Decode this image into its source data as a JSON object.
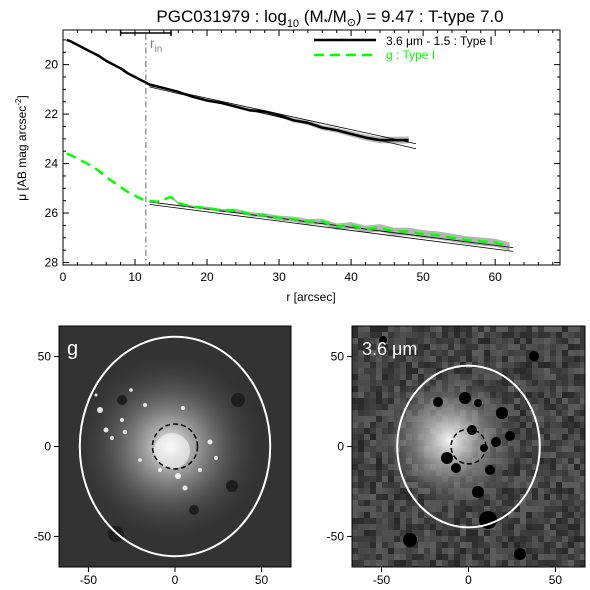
{
  "chart_data": [
    {
      "type": "line",
      "title": {
        "prefix": "PGC031979 : log",
        "sub10": "10",
        "mid": " (M",
        "star": "*",
        "slash": "/M",
        "sun": "⊙",
        "suffix": ") = 9.47 : T-type 7.0"
      },
      "xlabel": "r [arcsec]",
      "ylabel": "μ [AB mag arcsec",
      "ylabel_exp": "-2",
      "ylabel_close": "]",
      "xlim": [
        0,
        69
      ],
      "ylim": [
        28.1,
        18.6
      ],
      "y_inverted": true,
      "xticks": [
        0,
        10,
        20,
        30,
        40,
        50,
        60
      ],
      "yticks": [
        20,
        22,
        24,
        26,
        28
      ],
      "r_in_label": "r",
      "r_in_sub": "in",
      "r_in_value": 11.5,
      "r_in_error": [
        8,
        15
      ],
      "legend_position": "top-right",
      "legend": [
        {
          "label": "3.6 μm - 1.5 : Type I",
          "color": "#000000",
          "style": "solid"
        },
        {
          "label": "g : Type I",
          "color": "#00ff00",
          "style": "dashed"
        }
      ],
      "series": [
        {
          "name": "3.6 μm - 1.5 : Type I",
          "color": "#000000",
          "x": [
            0.5,
            1,
            2,
            3,
            4,
            5,
            6,
            7,
            8,
            9,
            10,
            11,
            12,
            14,
            16,
            18,
            20,
            22,
            24,
            26,
            28,
            30,
            32,
            34,
            36,
            38,
            40,
            42,
            44,
            46,
            48
          ],
          "y": [
            19.0,
            19.05,
            19.2,
            19.35,
            19.5,
            19.65,
            19.85,
            20.0,
            20.15,
            20.35,
            20.5,
            20.65,
            20.8,
            20.95,
            21.1,
            21.3,
            21.45,
            21.55,
            21.7,
            21.85,
            21.9,
            22.05,
            22.25,
            22.35,
            22.55,
            22.65,
            22.8,
            22.95,
            23.05,
            23.05,
            23.05
          ]
        },
        {
          "name": "g : Type I",
          "color": "#00ff00",
          "x": [
            0.5,
            1,
            2,
            3,
            4,
            5,
            6,
            7,
            8,
            9,
            10,
            11,
            12,
            13,
            14,
            15,
            16,
            18,
            20,
            22,
            24,
            26,
            28,
            30,
            32,
            34,
            36,
            38,
            40,
            42,
            44,
            46,
            48,
            50,
            52,
            54,
            56,
            58,
            60,
            62
          ],
          "y": [
            23.6,
            23.65,
            23.8,
            23.95,
            24.1,
            24.3,
            24.55,
            24.75,
            24.95,
            25.15,
            25.3,
            25.45,
            25.5,
            25.55,
            25.45,
            25.35,
            25.6,
            25.75,
            25.8,
            25.9,
            25.9,
            26.05,
            26.1,
            26.2,
            26.25,
            26.35,
            26.35,
            26.55,
            26.5,
            26.65,
            26.6,
            26.75,
            26.75,
            26.85,
            26.9,
            27.0,
            27.1,
            27.15,
            27.2,
            27.35
          ]
        }
      ],
      "fits": [
        {
          "band": "3.6",
          "x": [
            12,
            49
          ],
          "y1": [
            20.85,
            23.2
          ],
          "y2": [
            20.9,
            23.4
          ]
        },
        {
          "band": "g",
          "x": [
            12,
            62.5
          ],
          "y1": [
            25.55,
            27.4
          ],
          "y2": [
            25.65,
            27.55
          ]
        }
      ]
    },
    {
      "type": "heatmap",
      "panel_label": "g",
      "xticks": [
        -50,
        0,
        50
      ],
      "yticks": [
        50,
        0,
        -50
      ],
      "xlim": [
        -67,
        67
      ],
      "ylim": [
        -67,
        67
      ],
      "ellipse": {
        "a": 55,
        "b": 61
      },
      "inner_circle_r": 13
    },
    {
      "type": "heatmap",
      "panel_label": "3.6 μm",
      "xticks": [
        -50,
        0,
        50
      ],
      "yticks": [
        50,
        0,
        -50
      ],
      "xlim": [
        -67,
        67
      ],
      "ylim": [
        -67,
        67
      ],
      "ellipse": {
        "a": 41,
        "b": 45
      },
      "inner_circle_r": 10
    }
  ]
}
